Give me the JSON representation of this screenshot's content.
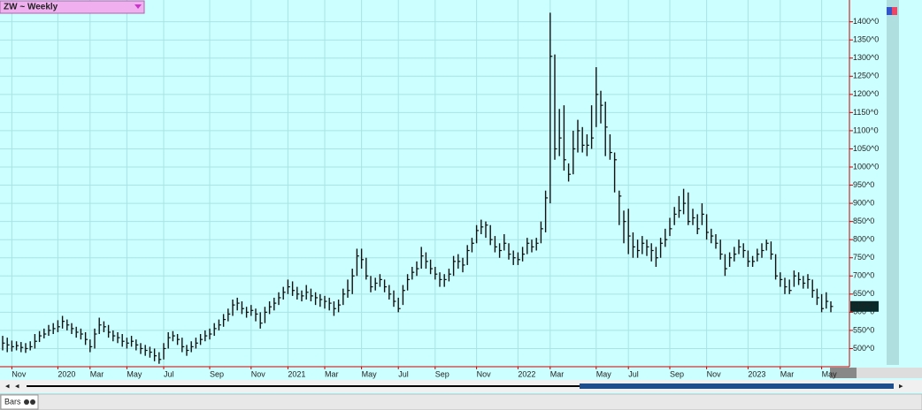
{
  "chart_data": {
    "type": "hlc",
    "title": "ZW ~ Weekly",
    "categories": [
      null,
      null,
      "Nov",
      null,
      null,
      null,
      null,
      null,
      null,
      null,
      null,
      null,
      "2020",
      null,
      null,
      null,
      null,
      null,
      null,
      "Mar",
      null,
      null,
      null,
      null,
      null,
      null,
      null,
      "May",
      null,
      null,
      null,
      null,
      null,
      null,
      null,
      "Jul",
      null,
      null,
      null,
      null,
      null,
      null,
      null,
      null,
      null,
      "Sep",
      null,
      null,
      null,
      null,
      null,
      null,
      null,
      null,
      "Nov",
      null,
      null,
      null,
      null,
      null,
      null,
      null,
      "2021",
      null,
      null,
      null,
      null,
      null,
      null,
      null,
      "Mar",
      null,
      null,
      null,
      null,
      null,
      null,
      null,
      "May",
      null,
      null,
      null,
      null,
      null,
      null,
      null,
      "Jul",
      null,
      null,
      null,
      null,
      null,
      null,
      null,
      "Sep",
      null,
      null,
      null,
      null,
      null,
      null,
      null,
      null,
      "Nov",
      null,
      null,
      null,
      null,
      null,
      null,
      null,
      null,
      "2022",
      null,
      null,
      null,
      null,
      null,
      null,
      "Mar",
      null,
      null,
      null,
      null,
      null,
      null,
      null,
      null,
      null,
      "May",
      null,
      null,
      null,
      null,
      null,
      null,
      "Jul",
      null,
      null,
      null,
      null,
      null,
      null,
      null,
      null,
      "Sep",
      null,
      null,
      null,
      null,
      null,
      null,
      null,
      "Nov",
      null,
      null,
      null,
      null,
      null,
      null,
      null,
      null,
      "2023",
      null,
      null,
      null,
      null,
      null,
      null,
      "Mar",
      null,
      null,
      null,
      null,
      null,
      null,
      null,
      null,
      "May",
      null,
      null
    ],
    "high": [
      535,
      530,
      522,
      520,
      518,
      515,
      520,
      540,
      548,
      555,
      565,
      570,
      578,
      590,
      580,
      570,
      560,
      555,
      545,
      525,
      555,
      585,
      575,
      565,
      550,
      545,
      540,
      530,
      535,
      525,
      515,
      510,
      505,
      500,
      490,
      515,
      545,
      548,
      540,
      530,
      510,
      520,
      530,
      540,
      550,
      555,
      570,
      580,
      595,
      610,
      635,
      640,
      630,
      615,
      620,
      610,
      600,
      615,
      630,
      640,
      655,
      670,
      690,
      685,
      670,
      660,
      675,
      665,
      655,
      650,
      645,
      640,
      630,
      635,
      665,
      690,
      720,
      775,
      775,
      750,
      700,
      695,
      705,
      690,
      675,
      660,
      640,
      675,
      705,
      725,
      740,
      780,
      765,
      745,
      725,
      710,
      705,
      720,
      755,
      760,
      750,
      785,
      805,
      840,
      855,
      850,
      840,
      810,
      790,
      815,
      790,
      770,
      765,
      780,
      805,
      800,
      805,
      850,
      935,
      1425,
      1310,
      1160,
      1170,
      1010,
      1100,
      1130,
      1110,
      1090,
      1170,
      1275,
      1210,
      1180,
      1090,
      1040,
      935,
      880,
      885,
      820,
      800,
      810,
      800,
      790,
      780,
      805,
      830,
      860,
      890,
      920,
      940,
      930,
      885,
      870,
      900,
      870,
      830,
      815,
      800,
      760,
      765,
      780,
      800,
      790,
      770,
      755,
      775,
      790,
      800,
      795,
      760,
      710,
      695,
      690,
      715,
      710,
      700,
      705,
      690,
      665,
      650,
      655,
      630
    ],
    "low": [
      495,
      490,
      492,
      495,
      490,
      488,
      495,
      500,
      518,
      528,
      535,
      540,
      545,
      555,
      550,
      540,
      530,
      525,
      510,
      490,
      500,
      540,
      545,
      530,
      520,
      515,
      505,
      500,
      505,
      495,
      485,
      480,
      475,
      465,
      458,
      470,
      500,
      520,
      510,
      490,
      480,
      490,
      500,
      510,
      520,
      525,
      535,
      550,
      560,
      575,
      590,
      605,
      595,
      585,
      590,
      575,
      555,
      570,
      595,
      605,
      620,
      635,
      650,
      645,
      635,
      630,
      635,
      630,
      620,
      615,
      610,
      605,
      590,
      600,
      620,
      640,
      650,
      700,
      720,
      690,
      655,
      660,
      670,
      655,
      635,
      615,
      600,
      620,
      660,
      690,
      700,
      720,
      720,
      705,
      690,
      670,
      670,
      685,
      700,
      720,
      710,
      730,
      765,
      790,
      815,
      805,
      785,
      765,
      750,
      770,
      745,
      730,
      730,
      740,
      760,
      765,
      770,
      790,
      820,
      900,
      1020,
      1030,
      990,
      960,
      980,
      1040,
      1040,
      1030,
      1050,
      1110,
      1120,
      1030,
      1020,
      930,
      840,
      790,
      760,
      750,
      750,
      760,
      755,
      740,
      725,
      750,
      780,
      810,
      840,
      860,
      870,
      840,
      840,
      815,
      840,
      800,
      790,
      775,
      745,
      700,
      725,
      740,
      760,
      750,
      725,
      725,
      740,
      750,
      770,
      745,
      690,
      670,
      650,
      650,
      670,
      675,
      665,
      665,
      640,
      620,
      600,
      610,
      600
    ],
    "close": [
      515,
      510,
      505,
      508,
      503,
      500,
      505,
      520,
      535,
      540,
      550,
      555,
      560,
      575,
      565,
      555,
      545,
      540,
      525,
      505,
      540,
      565,
      560,
      545,
      535,
      530,
      520,
      515,
      520,
      510,
      500,
      495,
      490,
      480,
      470,
      500,
      530,
      535,
      525,
      505,
      495,
      505,
      515,
      525,
      535,
      540,
      555,
      565,
      580,
      595,
      620,
      625,
      610,
      600,
      605,
      595,
      570,
      600,
      615,
      625,
      640,
      655,
      670,
      660,
      650,
      645,
      655,
      645,
      640,
      635,
      630,
      625,
      610,
      620,
      650,
      660,
      700,
      755,
      745,
      700,
      670,
      680,
      690,
      670,
      650,
      630,
      610,
      660,
      690,
      710,
      720,
      755,
      740,
      720,
      705,
      690,
      690,
      705,
      740,
      740,
      730,
      770,
      790,
      825,
      835,
      840,
      800,
      780,
      770,
      790,
      760,
      750,
      745,
      760,
      790,
      780,
      790,
      830,
      915,
      1305,
      1050,
      1080,
      1020,
      980,
      1050,
      1100,
      1060,
      1060,
      1080,
      1200,
      1170,
      1110,
      1040,
      1020,
      920,
      850,
      810,
      780,
      770,
      790,
      780,
      770,
      750,
      790,
      800,
      830,
      870,
      880,
      900,
      850,
      860,
      830,
      870,
      820,
      810,
      790,
      760,
      720,
      750,
      760,
      780,
      770,
      740,
      740,
      760,
      770,
      790,
      760,
      700,
      690,
      670,
      660,
      700,
      690,
      680,
      690,
      660,
      640,
      610,
      630,
      616
    ],
    "color": "#111111",
    "last_price": {
      "value": 616,
      "label": "616^0"
    },
    "ylim": [
      450,
      1460
    ],
    "yticks": [
      {
        "value": 500,
        "label": "500^0"
      },
      {
        "value": 550,
        "label": "550^0"
      },
      {
        "value": 600,
        "label": "600^0"
      },
      {
        "value": 650,
        "label": "650^0"
      },
      {
        "value": 700,
        "label": "700^0"
      },
      {
        "value": 750,
        "label": "750^0"
      },
      {
        "value": 800,
        "label": "800^0"
      },
      {
        "value": 850,
        "label": "850^0"
      },
      {
        "value": 900,
        "label": "900^0"
      },
      {
        "value": 950,
        "label": "950^0"
      },
      {
        "value": 1000,
        "label": "1000^0"
      },
      {
        "value": 1050,
        "label": "1050^0"
      },
      {
        "value": 1100,
        "label": "1100^0"
      },
      {
        "value": 1150,
        "label": "1150^0"
      },
      {
        "value": 1200,
        "label": "1200^0"
      },
      {
        "value": 1250,
        "label": "1250^0"
      },
      {
        "value": 1300,
        "label": "1300^0"
      },
      {
        "value": 1350,
        "label": "1350^0"
      },
      {
        "value": 1400,
        "label": "1400^0"
      }
    ],
    "grid": true
  },
  "ui": {
    "tab": "Bars"
  }
}
